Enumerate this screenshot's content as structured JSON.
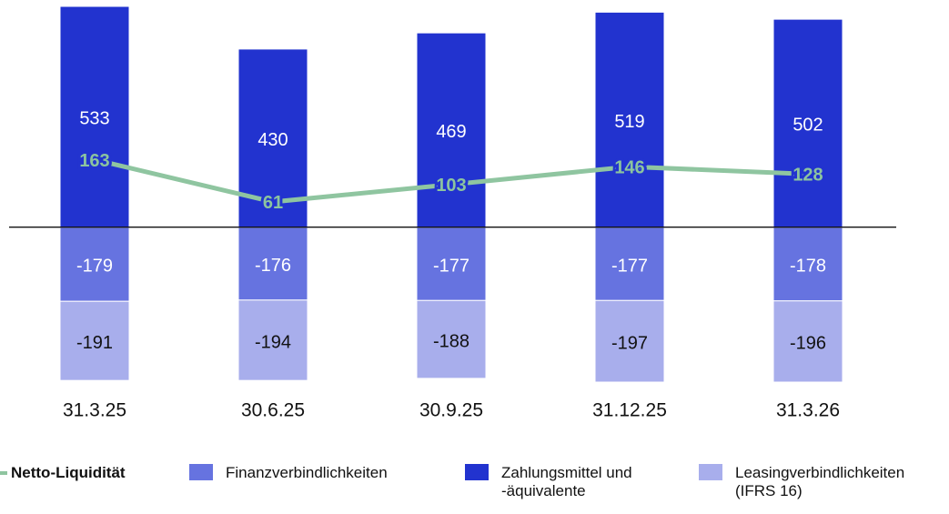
{
  "chart_data": {
    "type": "bar",
    "stacked": true,
    "categories": [
      "31.3.25",
      "30.6.25",
      "30.9.25",
      "31.12.25",
      "31.3.26"
    ],
    "series": [
      {
        "name": "Netto-Liquidität",
        "type": "line",
        "color": "#8fc5a0",
        "label_color": "#8cc49f",
        "values": [
          163,
          61,
          103,
          146,
          128
        ]
      },
      {
        "name": "Finanzverbindlichkeiten",
        "type": "bar",
        "color": "#6673e0",
        "label_color": "#ffffff",
        "values": [
          -179,
          -176,
          -177,
          -177,
          -178
        ]
      },
      {
        "name": "Zahlungsmittel und -äquivalente",
        "type": "bar",
        "color": "#2233cf",
        "label_color": "#ffffff",
        "values": [
          533,
          430,
          469,
          519,
          502
        ]
      },
      {
        "name": "Leasingverbindlichkeiten (IFRS 16)",
        "type": "bar",
        "color": "#a8aeec",
        "label_color": "#111111",
        "values": [
          -191,
          -194,
          -188,
          -197,
          -196
        ]
      }
    ]
  }
}
